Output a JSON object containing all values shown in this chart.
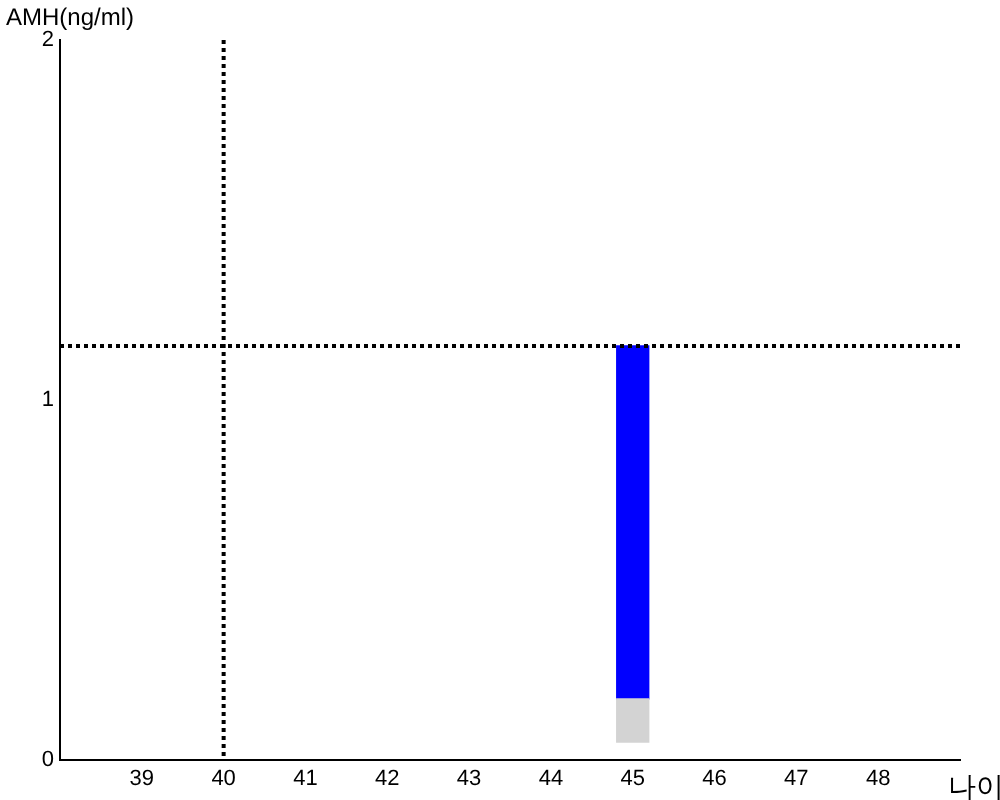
{
  "chart_data": {
    "type": "bar",
    "ylabel": "AMH(ng/ml)",
    "xlabel": "나이",
    "x": [
      45
    ],
    "series": [
      {
        "color": "#d3d3d3",
        "values": [
          0.12
        ],
        "base": [
          0.05
        ]
      },
      {
        "color": "#0000ff",
        "values": [
          0.98
        ],
        "base": [
          0.17
        ]
      }
    ],
    "xlim": [
      38,
      49
    ],
    "xticks": [
      39,
      40,
      41,
      42,
      43,
      44,
      45,
      46,
      47,
      48
    ],
    "ylim": [
      0,
      2
    ],
    "yticks": [
      0,
      1,
      2
    ],
    "grid": false,
    "legend": false,
    "ref_lines": [
      {
        "axis": "x",
        "value": 40,
        "color": "#000000",
        "line_style": "dotted"
      },
      {
        "axis": "y",
        "value": 1.15,
        "color": "#000000",
        "line_style": "dotted"
      }
    ]
  }
}
